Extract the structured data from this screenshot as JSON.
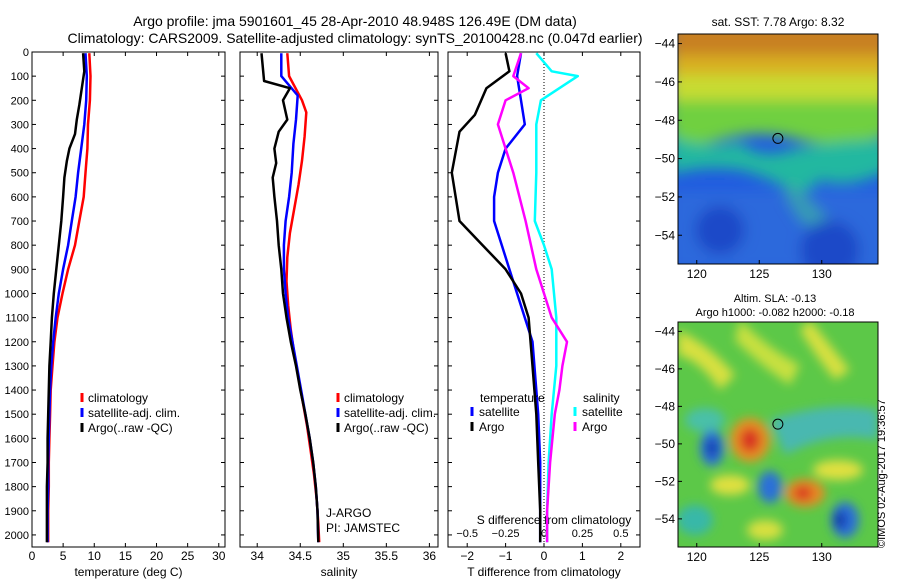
{
  "header": {
    "title_line1": "Argo profile: jma 5901601_45 28-Apr-2010 48.948S 126.49E (DM data)",
    "title_line2": "Climatology: CARS2009. Satellite-adjusted climatology: synTS_20100428.nc (0.047d earlier)"
  },
  "stamp": "©IMOS 02-Aug-2017 19:36:57",
  "colors": {
    "climatology": "#ff0000",
    "satellite": "#0000ff",
    "argo": "#000000",
    "sat_sal": "#00ffff",
    "argo_sal": "#ff00ff"
  },
  "chart_data": [
    {
      "type": "line",
      "xlabel": "temperature (deg C)",
      "xlim": [
        0,
        31
      ],
      "xticks": [
        "0",
        "5",
        "10",
        "15",
        "20",
        "25",
        "30"
      ],
      "ylim": [
        2050,
        0
      ],
      "yticks": [
        "0",
        "100",
        "200",
        "300",
        "400",
        "500",
        "600",
        "700",
        "800",
        "900",
        "1000",
        "1100",
        "1200",
        "1300",
        "1400",
        "1500",
        "1600",
        "1700",
        "1800",
        "1900",
        "2000"
      ],
      "legend": [
        "climatology",
        "satellite-adj. clim.",
        "Argo(..raw -QC)"
      ],
      "series": [
        {
          "name": "climatology",
          "color": "#ff0000",
          "points": [
            [
              9.2,
              5
            ],
            [
              9.4,
              100
            ],
            [
              9.3,
              200
            ],
            [
              9.0,
              300
            ],
            [
              8.9,
              400
            ],
            [
              8.6,
              500
            ],
            [
              8.3,
              600
            ],
            [
              7.6,
              700
            ],
            [
              6.9,
              800
            ],
            [
              5.8,
              900
            ],
            [
              4.9,
              1000
            ],
            [
              4.1,
              1100
            ],
            [
              3.6,
              1200
            ],
            [
              3.3,
              1300
            ],
            [
              3.0,
              1400
            ],
            [
              2.9,
              1500
            ],
            [
              2.8,
              1600
            ],
            [
              2.7,
              1700
            ],
            [
              2.7,
              1800
            ],
            [
              2.6,
              1900
            ],
            [
              2.6,
              2030
            ]
          ]
        },
        {
          "name": "satellite-adj. clim.",
          "color": "#0000ff",
          "points": [
            [
              8.6,
              5
            ],
            [
              8.8,
              100
            ],
            [
              8.7,
              200
            ],
            [
              8.4,
              300
            ],
            [
              7.9,
              400
            ],
            [
              7.4,
              500
            ],
            [
              7.0,
              600
            ],
            [
              6.4,
              700
            ],
            [
              5.8,
              800
            ],
            [
              5.0,
              900
            ],
            [
              4.3,
              1000
            ],
            [
              3.8,
              1100
            ],
            [
              3.4,
              1200
            ],
            [
              3.1,
              1300
            ],
            [
              2.9,
              1400
            ],
            [
              2.8,
              1500
            ],
            [
              2.7,
              1600
            ],
            [
              2.6,
              1700
            ],
            [
              2.6,
              1800
            ],
            [
              2.5,
              1900
            ],
            [
              2.5,
              2030
            ]
          ]
        },
        {
          "name": "Argo(..raw -QC)",
          "color": "#000000",
          "points": [
            [
              8.2,
              5
            ],
            [
              8.4,
              80
            ],
            [
              8.0,
              150
            ],
            [
              7.6,
              220
            ],
            [
              7.2,
              280
            ],
            [
              6.9,
              340
            ],
            [
              6.0,
              400
            ],
            [
              5.6,
              450
            ],
            [
              5.2,
              520
            ],
            [
              5.0,
              600
            ],
            [
              4.7,
              700
            ],
            [
              4.3,
              800
            ],
            [
              3.9,
              900
            ],
            [
              3.5,
              1000
            ],
            [
              3.2,
              1100
            ],
            [
              3.0,
              1200
            ],
            [
              2.8,
              1300
            ],
            [
              2.7,
              1400
            ],
            [
              2.6,
              1500
            ],
            [
              2.5,
              1600
            ],
            [
              2.5,
              1700
            ],
            [
              2.4,
              1800
            ],
            [
              2.4,
              1900
            ],
            [
              2.4,
              2030
            ]
          ]
        }
      ]
    },
    {
      "type": "line",
      "xlabel": "salinity",
      "xlim": [
        33.8,
        36.1
      ],
      "xticks": [
        "34",
        "34.5",
        "35",
        "35.5",
        "36"
      ],
      "ylim": [
        2050,
        0
      ],
      "legend": [
        "climatology",
        "satellite-adj. clim.",
        "Argo(..raw -QC)"
      ],
      "annotations": [
        "J-ARGO",
        "PI: JAMSTEC"
      ],
      "series": [
        {
          "name": "climatology",
          "color": "#ff0000",
          "points": [
            [
              34.35,
              5
            ],
            [
              34.37,
              100
            ],
            [
              34.52,
              200
            ],
            [
              34.57,
              250
            ],
            [
              34.55,
              350
            ],
            [
              34.52,
              450
            ],
            [
              34.48,
              550
            ],
            [
              34.43,
              650
            ],
            [
              34.38,
              750
            ],
            [
              34.35,
              850
            ],
            [
              34.34,
              950
            ],
            [
              34.36,
              1050
            ],
            [
              34.39,
              1150
            ],
            [
              34.43,
              1250
            ],
            [
              34.48,
              1350
            ],
            [
              34.53,
              1450
            ],
            [
              34.58,
              1550
            ],
            [
              34.62,
              1650
            ],
            [
              34.66,
              1750
            ],
            [
              34.69,
              1850
            ],
            [
              34.71,
              1950
            ],
            [
              34.72,
              2030
            ]
          ]
        },
        {
          "name": "satellite-adj. clim.",
          "color": "#0000ff",
          "points": [
            [
              34.28,
              5
            ],
            [
              34.28,
              100
            ],
            [
              34.47,
              180
            ],
            [
              34.45,
              280
            ],
            [
              34.42,
              380
            ],
            [
              34.4,
              500
            ],
            [
              34.37,
              600
            ],
            [
              34.33,
              700
            ],
            [
              34.31,
              800
            ],
            [
              34.31,
              900
            ],
            [
              34.33,
              1000
            ],
            [
              34.36,
              1100
            ],
            [
              34.41,
              1200
            ],
            [
              34.46,
              1300
            ],
            [
              34.51,
              1400
            ],
            [
              34.56,
              1500
            ],
            [
              34.61,
              1600
            ],
            [
              34.65,
              1700
            ],
            [
              34.68,
              1800
            ],
            [
              34.7,
              1900
            ],
            [
              34.71,
              2030
            ]
          ]
        },
        {
          "name": "Argo(..raw -QC)",
          "color": "#000000",
          "points": [
            [
              34.05,
              5
            ],
            [
              34.08,
              120
            ],
            [
              34.38,
              150
            ],
            [
              34.3,
              200
            ],
            [
              34.35,
              280
            ],
            [
              34.25,
              330
            ],
            [
              34.2,
              400
            ],
            [
              34.22,
              460
            ],
            [
              34.18,
              520
            ],
            [
              34.2,
              600
            ],
            [
              34.23,
              700
            ],
            [
              34.25,
              800
            ],
            [
              34.28,
              900
            ],
            [
              34.3,
              1000
            ],
            [
              34.34,
              1100
            ],
            [
              34.39,
              1200
            ],
            [
              34.45,
              1300
            ],
            [
              34.5,
              1400
            ],
            [
              34.56,
              1500
            ],
            [
              34.61,
              1600
            ],
            [
              34.65,
              1700
            ],
            [
              34.68,
              1800
            ],
            [
              34.7,
              1900
            ],
            [
              34.71,
              2030
            ]
          ]
        }
      ]
    },
    {
      "type": "line",
      "xlabel": "T difference from climatology",
      "xlabel_top": "S difference from climatology",
      "xlim": [
        -2.5,
        2.5
      ],
      "xticks": [
        "-2",
        "-1",
        "0",
        "1",
        "2"
      ],
      "xticks_top": [
        "-0.5",
        "-0.25",
        "0",
        "0.25",
        "0.5"
      ],
      "ylim": [
        2050,
        0
      ],
      "legend_titles": [
        "temperature",
        "salinity"
      ],
      "legend": [
        "satellite",
        "Argo",
        "satellite",
        "Argo"
      ],
      "series": [
        {
          "name": "temperature satellite",
          "color": "#0000ff",
          "points": [
            [
              -0.6,
              5
            ],
            [
              -0.7,
              100
            ],
            [
              -0.6,
              200
            ],
            [
              -0.5,
              300
            ],
            [
              -1.0,
              400
            ],
            [
              -1.2,
              500
            ],
            [
              -1.3,
              600
            ],
            [
              -1.3,
              700
            ],
            [
              -1.1,
              800
            ],
            [
              -0.9,
              900
            ],
            [
              -0.7,
              1000
            ],
            [
              -0.5,
              1100
            ],
            [
              -0.3,
              1200
            ],
            [
              -0.25,
              1300
            ],
            [
              -0.2,
              1400
            ],
            [
              -0.15,
              1500
            ],
            [
              -0.1,
              1700
            ],
            [
              -0.1,
              1900
            ],
            [
              -0.1,
              2030
            ]
          ]
        },
        {
          "name": "temperature Argo",
          "color": "#000000",
          "points": [
            [
              -1.0,
              5
            ],
            [
              -0.9,
              80
            ],
            [
              -1.5,
              150
            ],
            [
              -1.8,
              260
            ],
            [
              -2.2,
              330
            ],
            [
              -2.4,
              500
            ],
            [
              -2.2,
              700
            ],
            [
              -1.6,
              800
            ],
            [
              -1.0,
              900
            ],
            [
              -0.6,
              1000
            ],
            [
              -0.4,
              1100
            ],
            [
              -0.3,
              1300
            ],
            [
              -0.2,
              1500
            ],
            [
              -0.15,
              1700
            ],
            [
              -0.1,
              1900
            ],
            [
              -0.1,
              2030
            ]
          ]
        },
        {
          "name": "salinity satellite",
          "color": "#00ffff",
          "points": [
            [
              -0.05,
              5
            ],
            [
              0.05,
              80
            ],
            [
              0.22,
              100
            ],
            [
              -0.02,
              200
            ],
            [
              -0.05,
              300
            ],
            [
              -0.05,
              500
            ],
            [
              -0.06,
              700
            ],
            [
              0.0,
              800
            ],
            [
              0.05,
              900
            ],
            [
              0.08,
              1100
            ],
            [
              0.08,
              1300
            ],
            [
              0.05,
              1500
            ],
            [
              0.03,
              1700
            ],
            [
              0.02,
              1900
            ],
            [
              0.02,
              2030
            ]
          ]
        },
        {
          "name": "salinity Argo",
          "color": "#ff00ff",
          "points": [
            [
              -0.15,
              5
            ],
            [
              -0.2,
              100
            ],
            [
              -0.1,
              150
            ],
            [
              -0.25,
              200
            ],
            [
              -0.3,
              300
            ],
            [
              -0.25,
              400
            ],
            [
              -0.2,
              500
            ],
            [
              -0.12,
              700
            ],
            [
              -0.05,
              900
            ],
            [
              0.05,
              1100
            ],
            [
              0.15,
              1200
            ],
            [
              0.12,
              1300
            ],
            [
              0.1,
              1400
            ],
            [
              0.07,
              1500
            ],
            [
              0.04,
              1700
            ],
            [
              0.02,
              1900
            ],
            [
              0.02,
              2030
            ]
          ]
        }
      ]
    },
    {
      "type": "heatmap",
      "title": "sat. SST: 7.78 Argo: 8.32",
      "xticks": [
        "120",
        "125",
        "130"
      ],
      "yticks": [
        "-44",
        "-46",
        "-48",
        "-50",
        "-52",
        "-54"
      ],
      "xlim": [
        118.5,
        134.5
      ],
      "ylim": [
        -55.5,
        -43.5
      ],
      "marker": [
        126.49,
        -48.948
      ]
    },
    {
      "type": "heatmap",
      "title_line1": "Altim. SLA: -0.13",
      "title_line2": "Argo h1000: -0.082 h2000: -0.18",
      "xticks": [
        "120",
        "125",
        "130"
      ],
      "yticks": [
        "-44",
        "-46",
        "-48",
        "-50",
        "-52",
        "-54"
      ],
      "xlim": [
        118.5,
        134.5
      ],
      "ylim": [
        -55.5,
        -43.5
      ],
      "marker": [
        126.49,
        -48.948
      ]
    }
  ]
}
